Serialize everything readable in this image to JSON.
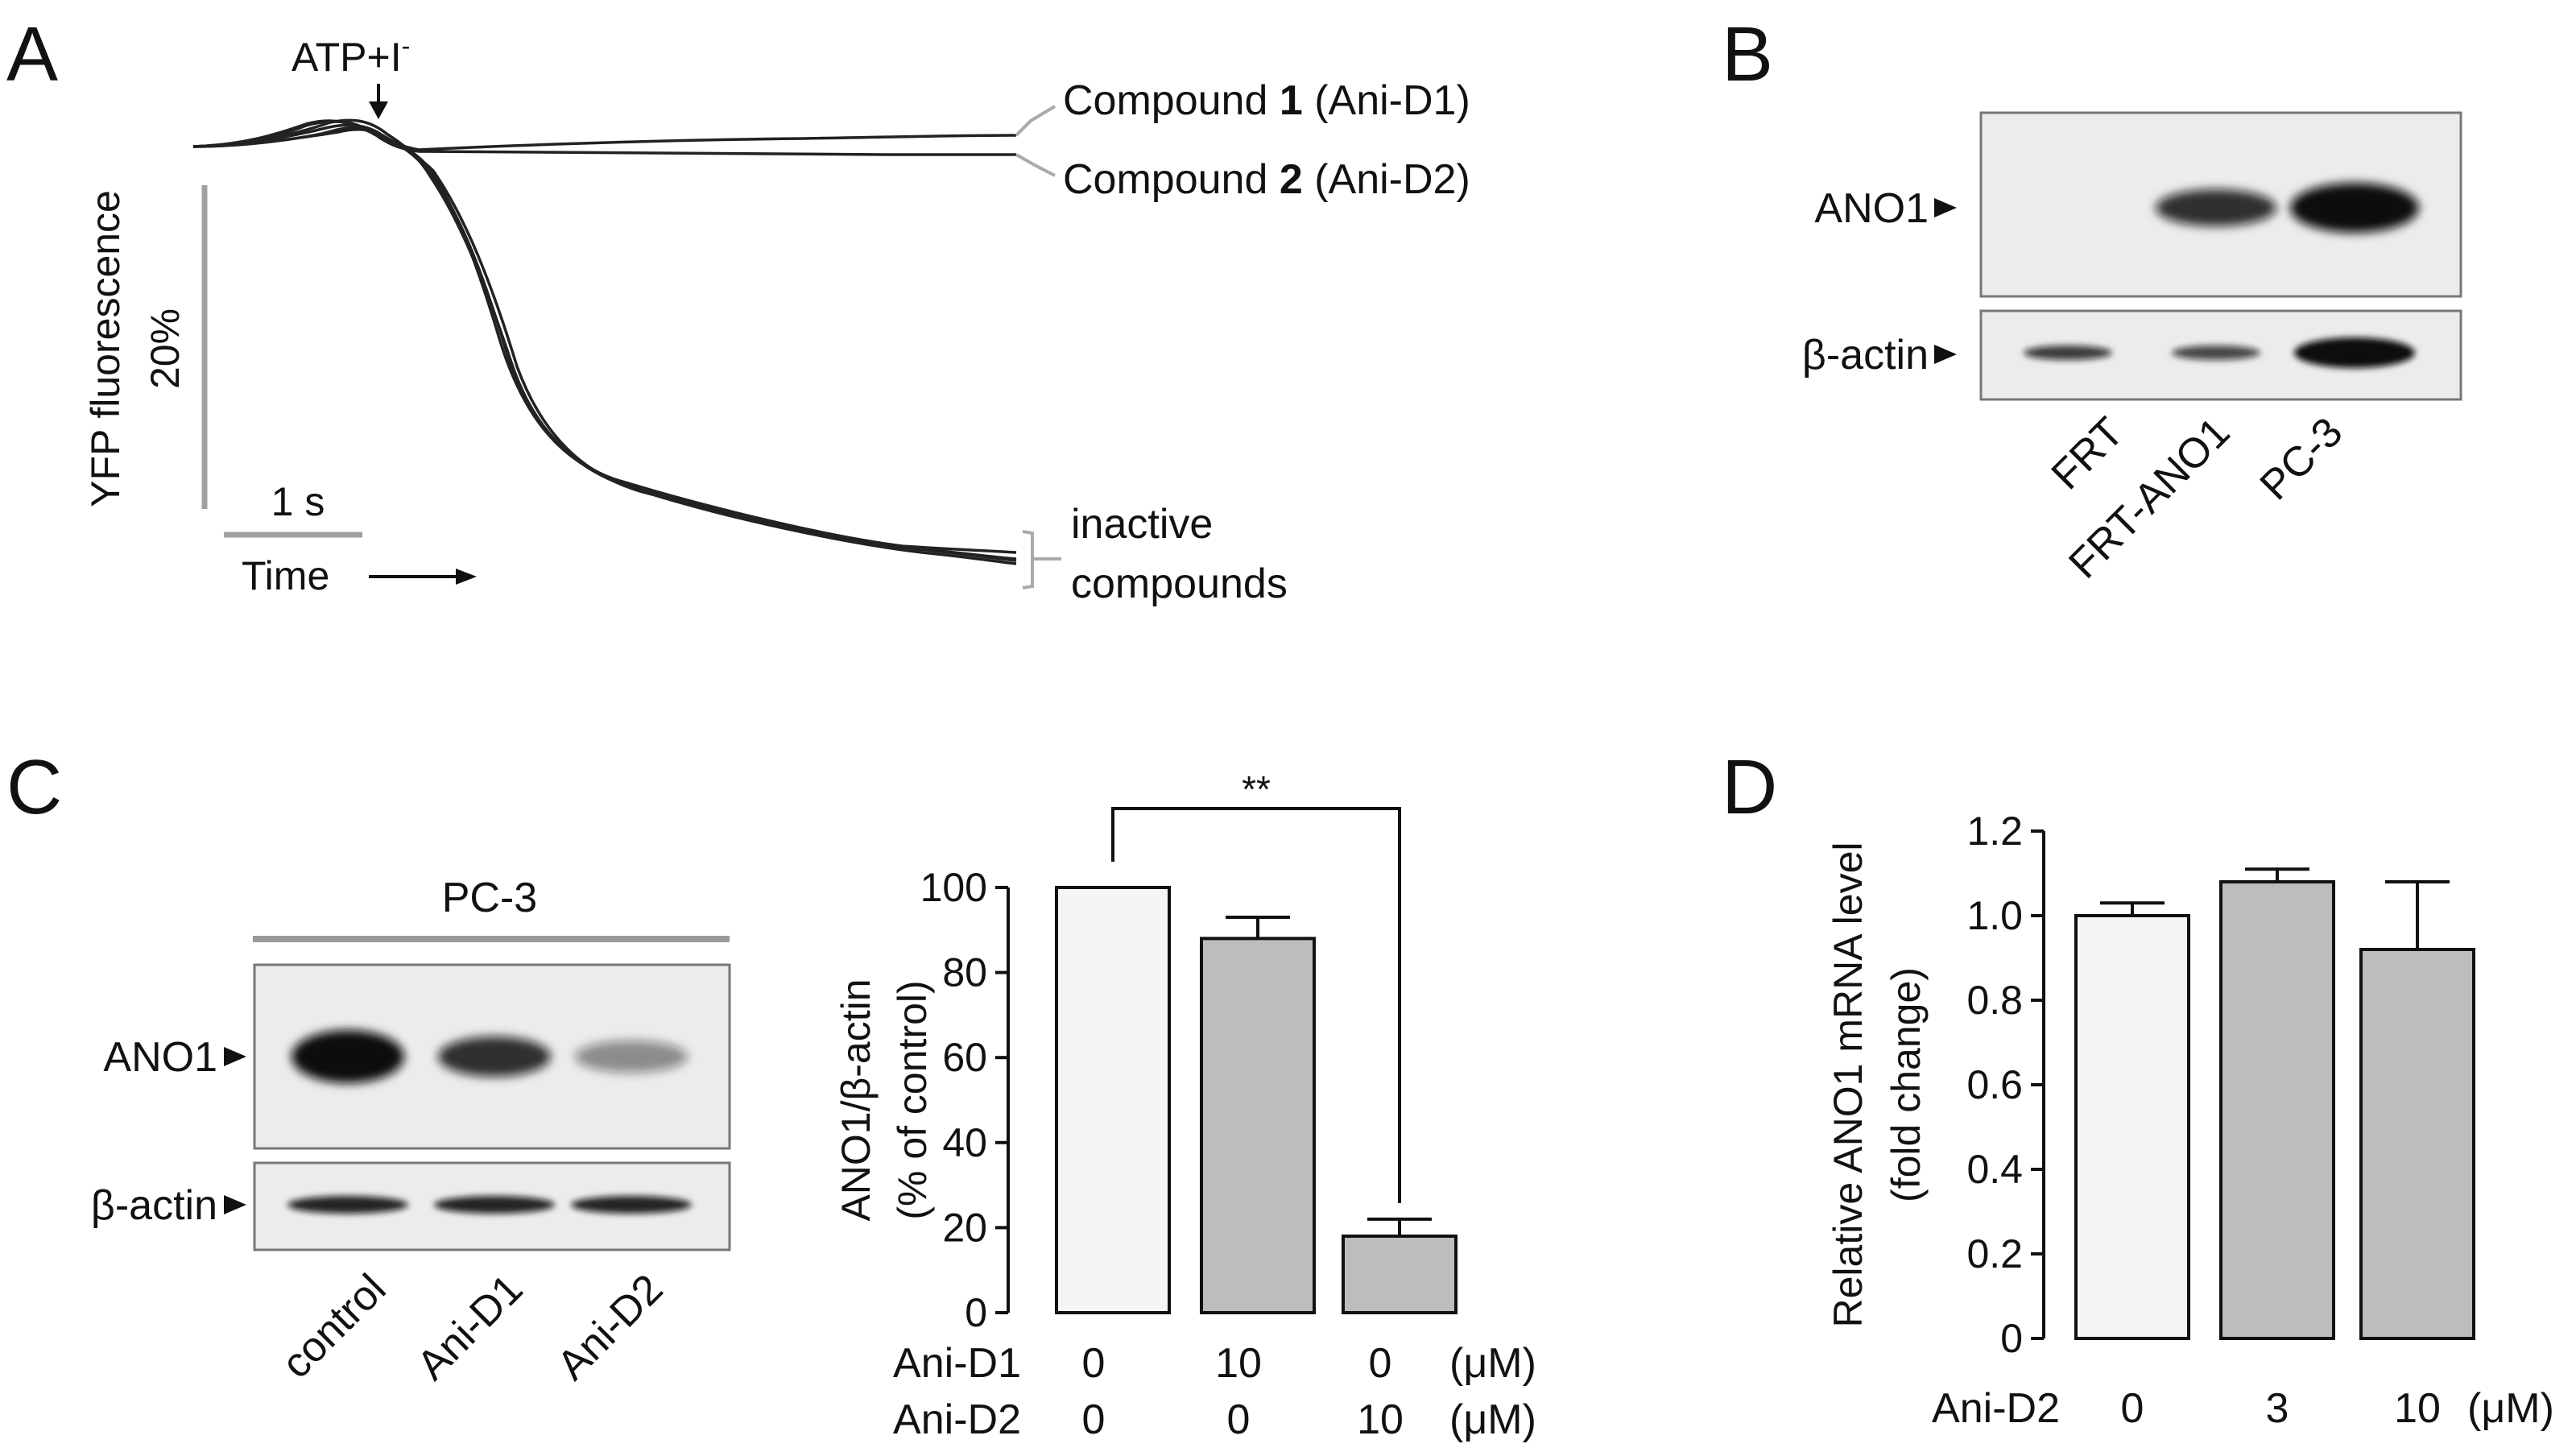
{
  "panels": {
    "a": "A",
    "b": "B",
    "c": "C",
    "d": "D"
  },
  "panel_a": {
    "stimulus": "ATP+I",
    "stimulus_sup": "-",
    "compound1": {
      "pre": "Compound ",
      "num": "1",
      "post": " (Ani-D1)"
    },
    "compound2": {
      "pre": "Compound ",
      "num": "2",
      "post": " (Ani-D2)"
    },
    "inactive_line1": "inactive",
    "inactive_line2": "compounds",
    "y_label": "YFP fluorescence",
    "y_scale": "20%",
    "x_scale": "1 s",
    "x_label": "Time",
    "arrow": "→"
  },
  "panel_b": {
    "band_ano1": "ANO1",
    "band_actin": "β-actin",
    "lanes": [
      "FRT",
      "FRT-ANO1",
      "PC-3"
    ],
    "ano1_intensity": [
      0,
      0.85,
      1.0
    ],
    "actin_intensity": [
      0.8,
      0.75,
      1.0
    ]
  },
  "panel_c": {
    "cell_line": "PC-3",
    "band_ano1": "ANO1",
    "band_actin": "β-actin",
    "lanes": [
      "control",
      "Ani-D1",
      "Ani-D2"
    ],
    "ano1_intensity": [
      1.0,
      0.85,
      0.45
    ],
    "actin_intensity": [
      0.9,
      0.9,
      0.9
    ]
  },
  "chart_data": [
    {
      "type": "bar",
      "panel": "C",
      "ylabel_line1": "ANO1/β-actin",
      "ylabel_line2": "(% of control)",
      "ylim": [
        0,
        100
      ],
      "yticks": [
        "0",
        "20",
        "40",
        "60",
        "80",
        "100"
      ],
      "ytick_values": [
        0,
        20,
        40,
        60,
        80,
        100
      ],
      "values": [
        100,
        88,
        18
      ],
      "errors": [
        0,
        5,
        4
      ],
      "bar_colors": [
        "#f5f5f5",
        "#bdbdbd",
        "#bdbdbd"
      ],
      "significance": "**",
      "treatment_rows": [
        {
          "label": "Ani-D1",
          "values": [
            "0",
            "10",
            "0"
          ],
          "unit": "(μM)"
        },
        {
          "label": "Ani-D2",
          "values": [
            "0",
            "0",
            "10"
          ],
          "unit": "(μM)"
        }
      ]
    },
    {
      "type": "bar",
      "panel": "D",
      "ylabel_line1": "Relative ANO1 mRNA level",
      "ylabel_line2": "(fold change)",
      "ylim": [
        0,
        1.2
      ],
      "yticks": [
        "0",
        "0.2",
        "0.4",
        "0.6",
        "0.8",
        "1.0",
        "1.2"
      ],
      "ytick_values": [
        0,
        0.2,
        0.4,
        0.6,
        0.8,
        1.0,
        1.2
      ],
      "values": [
        1.0,
        1.08,
        0.92
      ],
      "errors": [
        0.03,
        0.03,
        0.16
      ],
      "bar_colors": [
        "#f5f5f5",
        "#bdbdbd",
        "#bdbdbd"
      ],
      "treatment_label": "Ani-D2",
      "categories": [
        "0",
        "3",
        "10"
      ],
      "unit": "(μM)"
    }
  ]
}
